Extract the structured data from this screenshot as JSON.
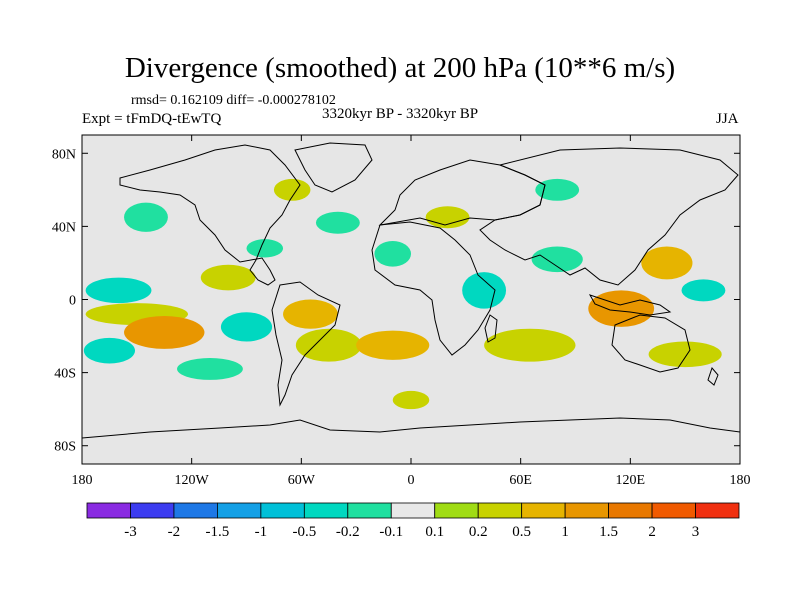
{
  "title": "Divergence (smoothed) at 200 hPa (10**6 m/s)",
  "stats_line": "rmsd= 0.162109 diff= -0.000278102",
  "experiment_label": "Expt = tFmDQ-tEwTQ",
  "period_label": "3320kyr BP - 3320kyr BP",
  "season_label": "JJA",
  "map": {
    "projection": "cylindrical equidistant",
    "lon_range": [
      -180,
      180
    ],
    "lat_range": [
      -90,
      90
    ],
    "background_color": "#e6e6e6",
    "coastline_color": "#000000"
  },
  "axes": {
    "x_ticks": [
      {
        "value": -180,
        "label": "180"
      },
      {
        "value": -120,
        "label": "120W"
      },
      {
        "value": -60,
        "label": "60W"
      },
      {
        "value": 0,
        "label": "0"
      },
      {
        "value": 60,
        "label": "60E"
      },
      {
        "value": 120,
        "label": "120E"
      },
      {
        "value": 180,
        "label": "180"
      }
    ],
    "y_ticks": [
      {
        "value": 80,
        "label": "80N"
      },
      {
        "value": 40,
        "label": "40N"
      },
      {
        "value": 0,
        "label": "0"
      },
      {
        "value": -40,
        "label": "40S"
      },
      {
        "value": -80,
        "label": "80S"
      }
    ]
  },
  "colorbar": {
    "colors": [
      "#8a2be2",
      "#3c3cf0",
      "#1e78e6",
      "#14a0e6",
      "#00c0d8",
      "#00d8c0",
      "#20e0a0",
      "#e8e8e8",
      "#a0dc14",
      "#c8d200",
      "#e6b400",
      "#e89600",
      "#e87800",
      "#f05a00",
      "#f03010"
    ],
    "labels": [
      "-3",
      "-2",
      "-1.5",
      "-1",
      "-0.5",
      "-0.2",
      "-0.1",
      "0.1",
      "0.2",
      "0.5",
      "1",
      "1.5",
      "2",
      "3"
    ]
  },
  "chart_data": {
    "type": "contour-map",
    "title": "Divergence (smoothed) at 200 hPa (10**6 m/s)",
    "variable": "Divergence (smoothed)",
    "level": "200 hPa",
    "units": "10**6 m/s",
    "rmsd": 0.162109,
    "diff": -0.000278102,
    "experiment": "tFmDQ-tEwTQ",
    "period": "3320kyr BP - 3320kyr BP",
    "season": "JJA",
    "levels": [
      -3,
      -2,
      -1.5,
      -1,
      -0.5,
      -0.2,
      -0.1,
      0.1,
      0.2,
      0.5,
      1,
      1.5,
      2,
      3
    ],
    "xlim": [
      -180,
      180
    ],
    "ylim": [
      -90,
      90
    ],
    "anomaly_regions": [
      {
        "lon": -145,
        "lat": 45,
        "rx": 12,
        "ry": 8,
        "value": -0.2
      },
      {
        "lon": -160,
        "lat": 5,
        "rx": 18,
        "ry": 7,
        "value": -0.3
      },
      {
        "lon": -150,
        "lat": -8,
        "rx": 28,
        "ry": 6,
        "value": 0.3
      },
      {
        "lon": -135,
        "lat": -18,
        "rx": 22,
        "ry": 9,
        "value": 1.0
      },
      {
        "lon": -165,
        "lat": -28,
        "rx": 14,
        "ry": 7,
        "value": -0.3
      },
      {
        "lon": -110,
        "lat": -38,
        "rx": 18,
        "ry": 6,
        "value": -0.2
      },
      {
        "lon": -100,
        "lat": 12,
        "rx": 15,
        "ry": 7,
        "value": 0.3
      },
      {
        "lon": -80,
        "lat": 28,
        "rx": 10,
        "ry": 5,
        "value": -0.2
      },
      {
        "lon": -90,
        "lat": -15,
        "rx": 14,
        "ry": 8,
        "value": -0.3
      },
      {
        "lon": -55,
        "lat": -8,
        "rx": 15,
        "ry": 8,
        "value": 0.5
      },
      {
        "lon": -45,
        "lat": -25,
        "rx": 18,
        "ry": 9,
        "value": 0.3
      },
      {
        "lon": -65,
        "lat": 60,
        "rx": 10,
        "ry": 6,
        "value": 0.2
      },
      {
        "lon": -40,
        "lat": 42,
        "rx": 12,
        "ry": 6,
        "value": -0.2
      },
      {
        "lon": -10,
        "lat": 25,
        "rx": 10,
        "ry": 7,
        "value": -0.2
      },
      {
        "lon": -10,
        "lat": -25,
        "rx": 20,
        "ry": 8,
        "value": 0.5
      },
      {
        "lon": 20,
        "lat": 45,
        "rx": 12,
        "ry": 6,
        "value": 0.3
      },
      {
        "lon": 40,
        "lat": 5,
        "rx": 12,
        "ry": 10,
        "value": -0.3
      },
      {
        "lon": 65,
        "lat": -25,
        "rx": 25,
        "ry": 9,
        "value": 0.3
      },
      {
        "lon": 80,
        "lat": 22,
        "rx": 14,
        "ry": 7,
        "value": -0.2
      },
      {
        "lon": 115,
        "lat": -5,
        "rx": 18,
        "ry": 10,
        "value": 1.0
      },
      {
        "lon": 140,
        "lat": 20,
        "rx": 14,
        "ry": 9,
        "value": 0.5
      },
      {
        "lon": 150,
        "lat": -30,
        "rx": 20,
        "ry": 7,
        "value": 0.3
      },
      {
        "lon": 160,
        "lat": 5,
        "rx": 12,
        "ry": 6,
        "value": -0.5
      },
      {
        "lon": 80,
        "lat": 60,
        "rx": 12,
        "ry": 6,
        "value": -0.2
      },
      {
        "lon": 0,
        "lat": -55,
        "rx": 10,
        "ry": 5,
        "value": 0.2
      }
    ]
  }
}
